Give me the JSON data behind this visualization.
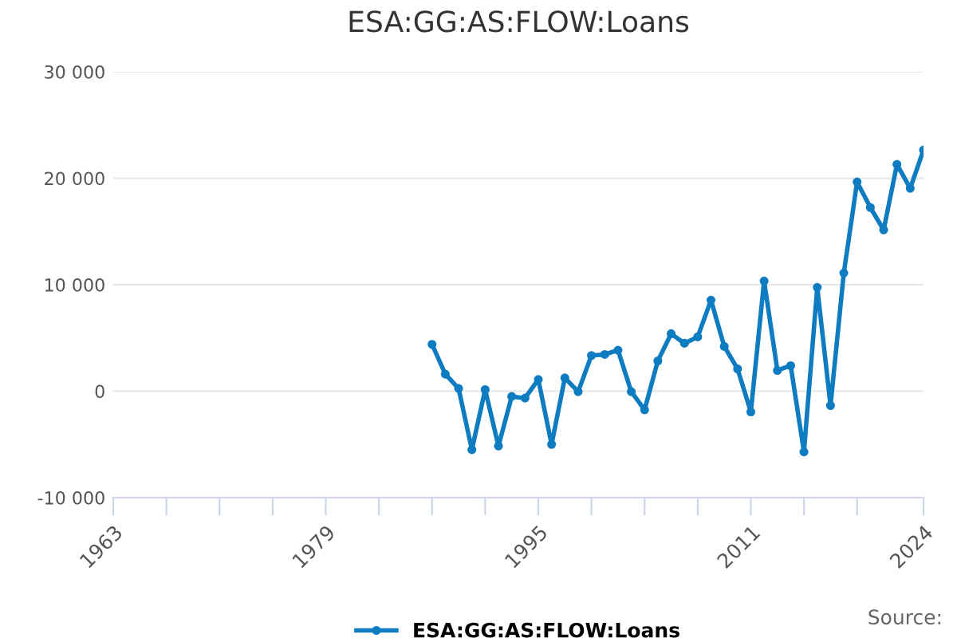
{
  "chart_data": {
    "type": "line",
    "title": "ESA:GG:AS:FLOW:Loans",
    "x": [
      1987,
      1988,
      1989,
      1990,
      1991,
      1992,
      1993,
      1994,
      1995,
      1996,
      1997,
      1998,
      1999,
      2000,
      2001,
      2002,
      2003,
      2004,
      2005,
      2006,
      2007,
      2008,
      2009,
      2010,
      2011,
      2012,
      2013,
      2014,
      2015,
      2016,
      2017,
      2018,
      2019,
      2020,
      2021,
      2022,
      2023,
      2024
    ],
    "series": [
      {
        "name": "ESA:GG:AS:FLOW:Loans",
        "color": "#0e7cc1",
        "values": [
          4400,
          1600,
          250,
          -5500,
          150,
          -5150,
          -500,
          -650,
          1100,
          -5000,
          1250,
          -50,
          3350,
          3450,
          3850,
          -50,
          -1750,
          2850,
          5400,
          4500,
          5100,
          8550,
          4200,
          2100,
          -1950,
          10350,
          1950,
          2400,
          -5700,
          9750,
          -1350,
          11100,
          19650,
          17250,
          15150,
          21300,
          19050,
          22650
        ]
      }
    ],
    "xlim": [
      1963,
      2024
    ],
    "xticks": [
      1963,
      {
        "value": 1967,
        "label": null
      },
      {
        "value": 1971,
        "label": null
      },
      {
        "value": 1975,
        "label": null
      },
      1979,
      {
        "value": 1983,
        "label": null
      },
      {
        "value": 1987,
        "label": null
      },
      {
        "value": 1991,
        "label": null
      },
      1995,
      {
        "value": 1999,
        "label": null
      },
      {
        "value": 2003,
        "label": null
      },
      {
        "value": 2007,
        "label": null
      },
      2011,
      {
        "value": 2015,
        "label": null
      },
      {
        "value": 2019,
        "label": null
      },
      2024
    ],
    "ylim": [
      -10000,
      30000
    ],
    "yticks": [
      {
        "value": -10000,
        "label": "-10 000"
      },
      0,
      {
        "value": 10000,
        "label": "10 000"
      },
      {
        "value": 20000,
        "label": "20 000"
      },
      {
        "value": 30000,
        "label": "30 000"
      }
    ],
    "grid": "y",
    "legend": "bottom",
    "marker": "circle",
    "line_style": "solid",
    "annotations": [
      "Source:"
    ]
  }
}
